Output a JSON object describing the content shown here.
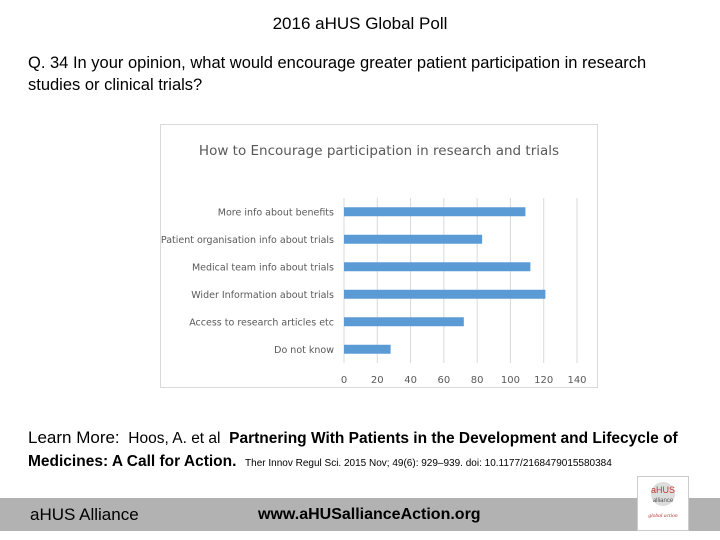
{
  "slide": {
    "title": "2016 aHUS Global Poll",
    "question": "Q. 34  In your opinion, what would encourage greater patient participation in research studies or clinical trials?"
  },
  "chart_data": {
    "type": "bar",
    "orientation": "horizontal",
    "title": "How to Encourage participation in research and trials",
    "categories": [
      "More info about benefits",
      "Patient organisation info about trials",
      "Medical team  info about trials",
      "Wider Information about trials",
      "Access to research articles etc",
      "Do not know"
    ],
    "values": [
      109,
      83,
      112,
      121,
      72,
      28
    ],
    "xlim": [
      0,
      140
    ],
    "xticks": [
      0,
      20,
      40,
      60,
      80,
      100,
      120,
      140
    ],
    "grid": true,
    "legend": "none",
    "bar_color": "#5b9bd5"
  },
  "learn_more": {
    "label": "Learn More:",
    "authors": "Hoos, A. et al",
    "title": "Partnering With Patients in the Development and Lifecycle of Medicines:  A Call for Action.",
    "citation": "Ther Innov Regul Sci. 2015 Nov; 49(6): 929–939.  doi:  10.1177/2168479015580384"
  },
  "footer": {
    "org": "aHUS Alliance",
    "url": "www.aHUSallianceAction.org",
    "logo_text": "aHUS alliance global action"
  }
}
